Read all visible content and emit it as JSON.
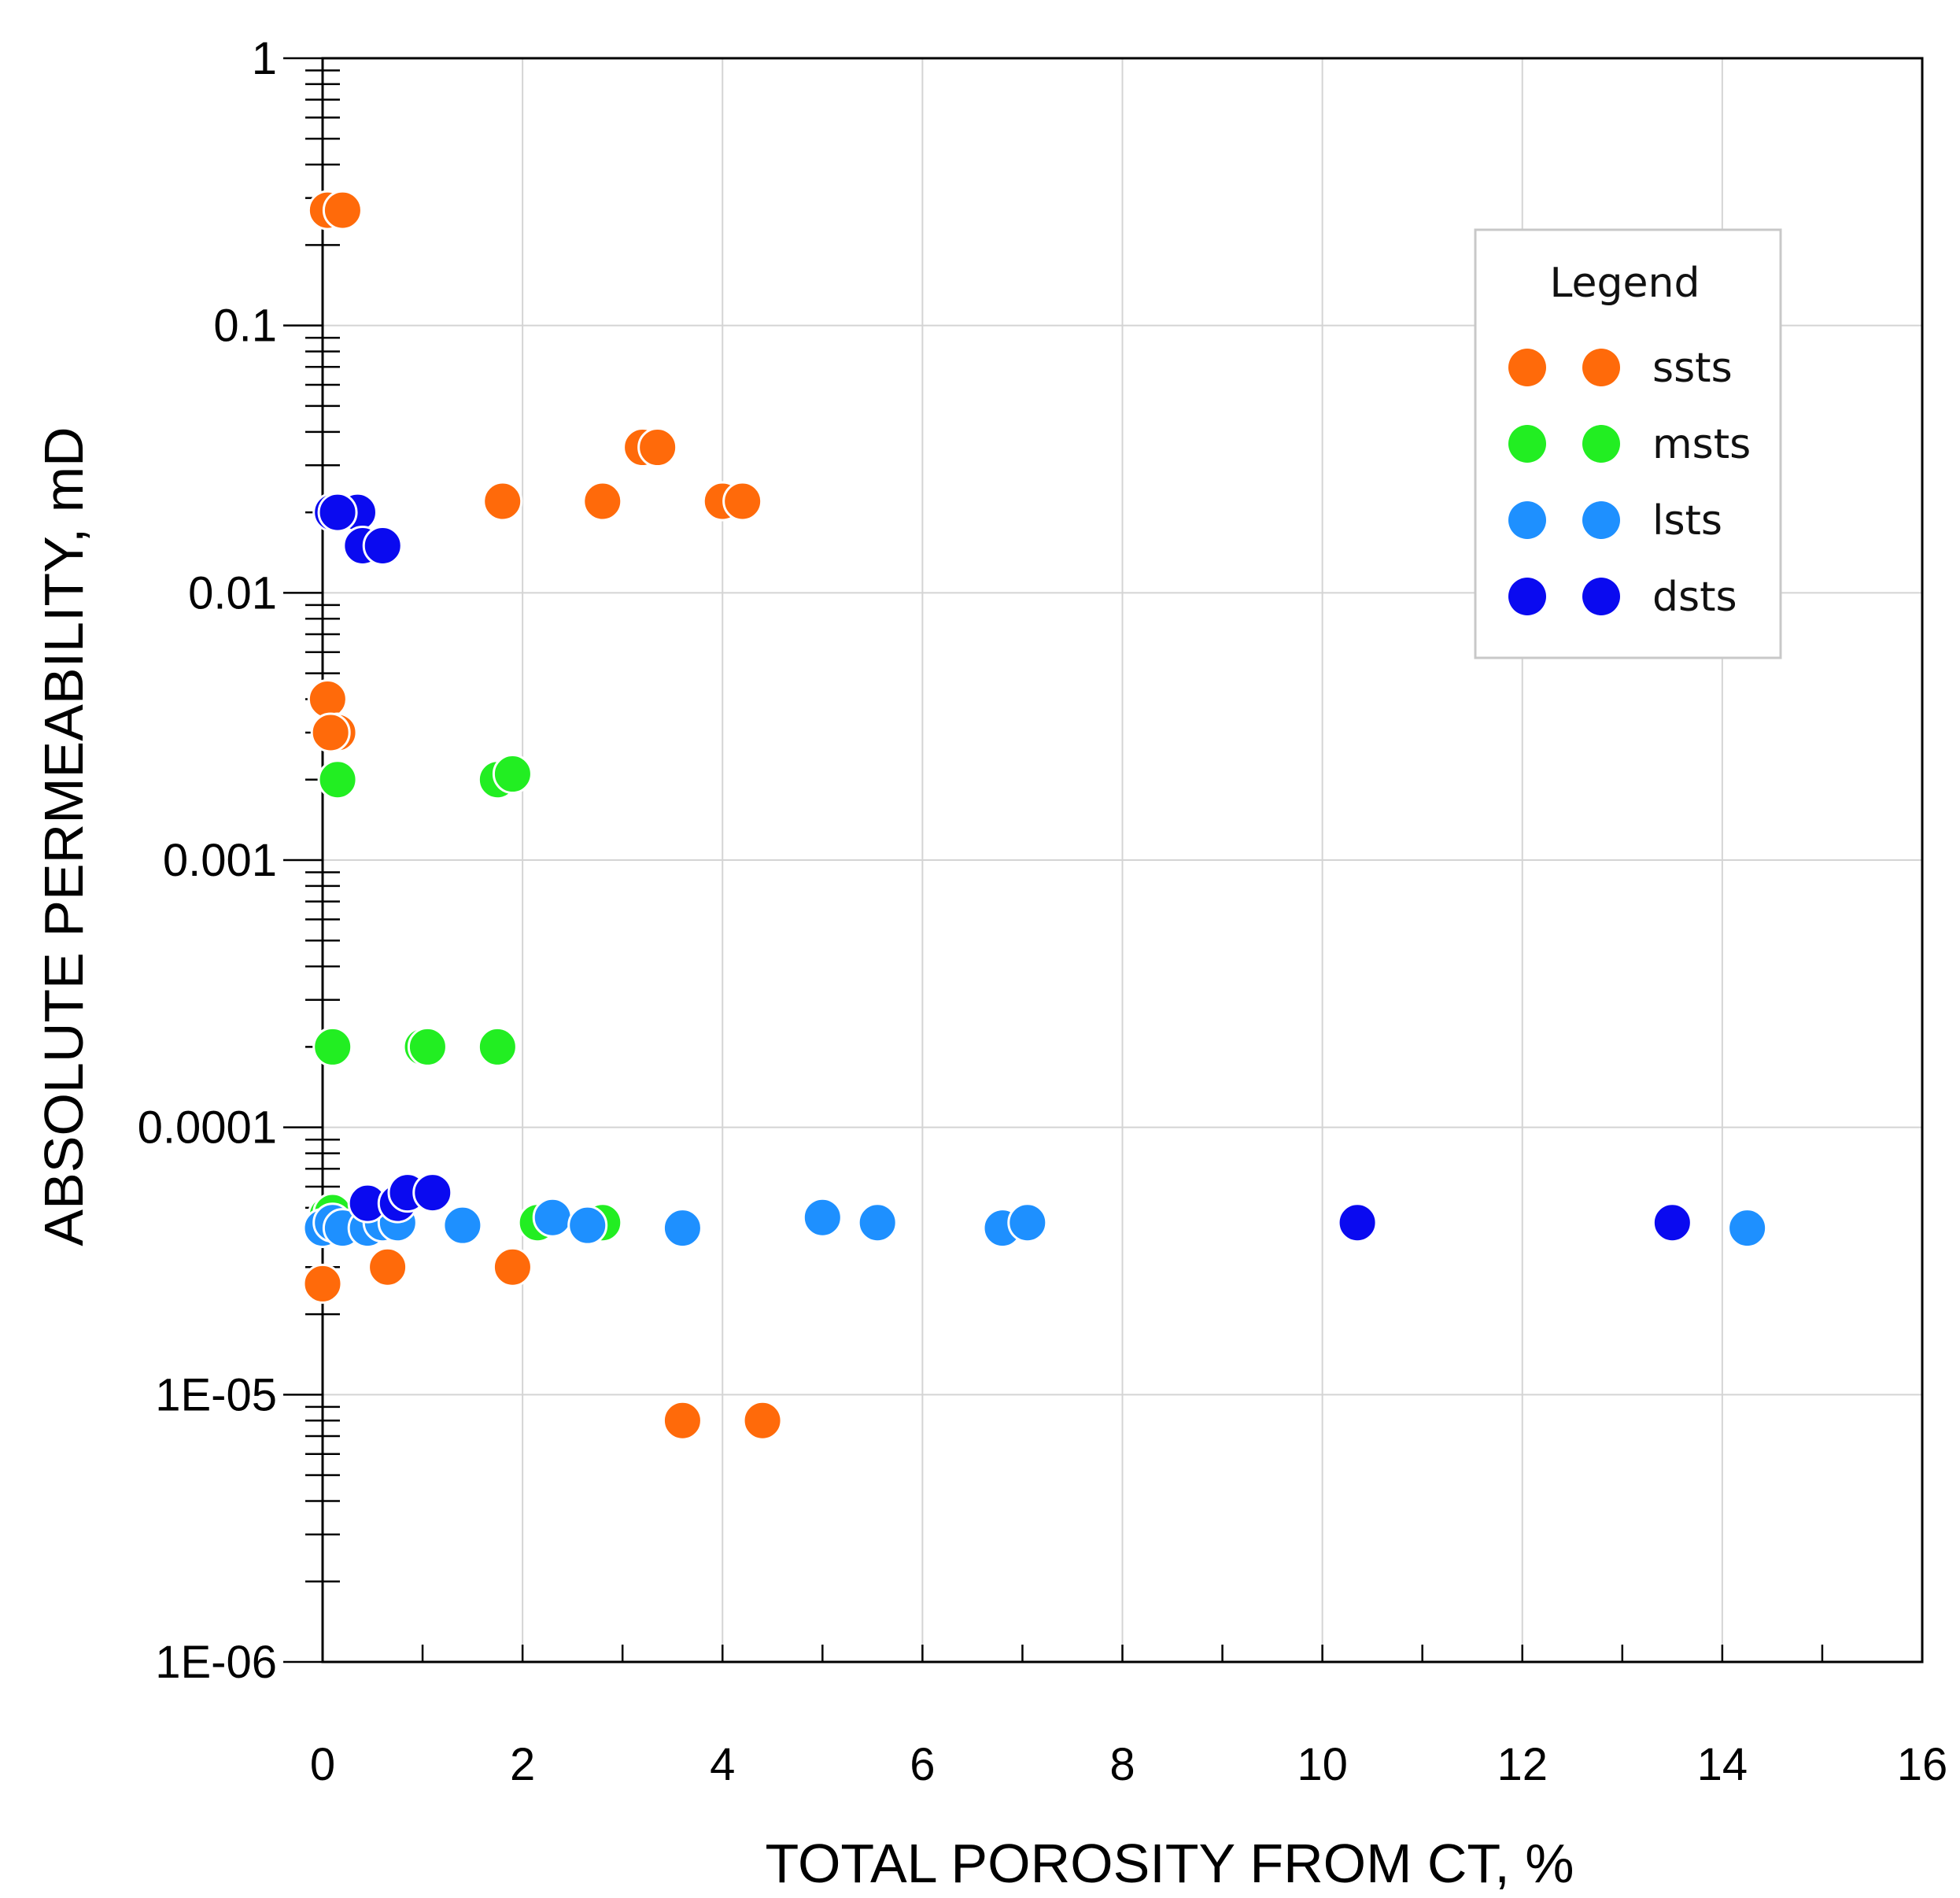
{
  "chart_data": {
    "type": "scatter",
    "xlabel": "TOTAL POROSITY FROM CT, %",
    "ylabel": "ABSOLUTE PERMEABILITY, mD",
    "xlim": [
      0,
      16
    ],
    "ylim": [
      1e-06,
      1
    ],
    "yscale": "log",
    "grid": true,
    "x_ticks": [
      {
        "value": 0,
        "label": "0"
      },
      {
        "value": 2,
        "label": "2"
      },
      {
        "value": 4,
        "label": "4"
      },
      {
        "value": 6,
        "label": "6"
      },
      {
        "value": 8,
        "label": "8"
      },
      {
        "value": 10,
        "label": "10"
      },
      {
        "value": 12,
        "label": "12"
      },
      {
        "value": 14,
        "label": "14"
      },
      {
        "value": 16,
        "label": "16"
      }
    ],
    "y_ticks": [
      {
        "value": 1,
        "label": "1"
      },
      {
        "value": 0.1,
        "label": "0.1"
      },
      {
        "value": 0.01,
        "label": "0.01"
      },
      {
        "value": 0.001,
        "label": "0.001"
      },
      {
        "value": 0.0001,
        "label": "0.0001"
      },
      {
        "value": 1e-05,
        "label": "1E-05"
      },
      {
        "value": 1e-06,
        "label": "1E-06"
      }
    ],
    "legend": {
      "title": "Legend",
      "position": "top-right"
    },
    "series": [
      {
        "name": "ssts",
        "color": "#ff6a0a",
        "points": [
          [
            0.05,
            0.27
          ],
          [
            0.2,
            0.27
          ],
          [
            0.05,
            0.004
          ],
          [
            0.15,
            0.003
          ],
          [
            0.08,
            0.003
          ],
          [
            1.8,
            0.022
          ],
          [
            2.8,
            0.022
          ],
          [
            3.2,
            0.035
          ],
          [
            3.35,
            0.035
          ],
          [
            4.0,
            0.022
          ],
          [
            4.2,
            0.022
          ],
          [
            0.0,
            2.6e-05
          ],
          [
            0.65,
            3e-05
          ],
          [
            1.9,
            3e-05
          ],
          [
            3.6,
            8e-06
          ],
          [
            4.4,
            8e-06
          ]
        ]
      },
      {
        "name": "msts",
        "color": "#22ee22",
        "points": [
          [
            0.15,
            0.002
          ],
          [
            1.75,
            0.002
          ],
          [
            1.9,
            0.0021
          ],
          [
            0.1,
            0.0002
          ],
          [
            1.0,
            0.0002
          ],
          [
            1.05,
            0.0002
          ],
          [
            1.75,
            0.0002
          ],
          [
            0.05,
            4.7e-05
          ],
          [
            0.1,
            4.8e-05
          ],
          [
            2.15,
            4.4e-05
          ],
          [
            2.8,
            4.4e-05
          ]
        ]
      },
      {
        "name": "lsts",
        "color": "#1e90ff",
        "points": [
          [
            0.0,
            4.2e-05
          ],
          [
            0.1,
            4.4e-05
          ],
          [
            0.2,
            4.2e-05
          ],
          [
            0.45,
            4.2e-05
          ],
          [
            0.6,
            4.4e-05
          ],
          [
            0.75,
            4.4e-05
          ],
          [
            1.4,
            4.3e-05
          ],
          [
            2.3,
            4.6e-05
          ],
          [
            2.65,
            4.3e-05
          ],
          [
            3.6,
            4.2e-05
          ],
          [
            5.0,
            4.6e-05
          ],
          [
            5.55,
            4.4e-05
          ],
          [
            6.8,
            4.2e-05
          ],
          [
            7.05,
            4.4e-05
          ],
          [
            14.25,
            4.2e-05
          ]
        ]
      },
      {
        "name": "dsts",
        "color": "#0a0af0",
        "points": [
          [
            0.1,
            0.02
          ],
          [
            0.35,
            0.02
          ],
          [
            0.15,
            0.02
          ],
          [
            0.4,
            0.015
          ],
          [
            0.6,
            0.015
          ],
          [
            0.45,
            5.2e-05
          ],
          [
            0.75,
            5.2e-05
          ],
          [
            0.85,
            5.7e-05
          ],
          [
            1.1,
            5.7e-05
          ],
          [
            10.35,
            4.4e-05
          ],
          [
            13.5,
            4.4e-05
          ]
        ]
      }
    ]
  }
}
